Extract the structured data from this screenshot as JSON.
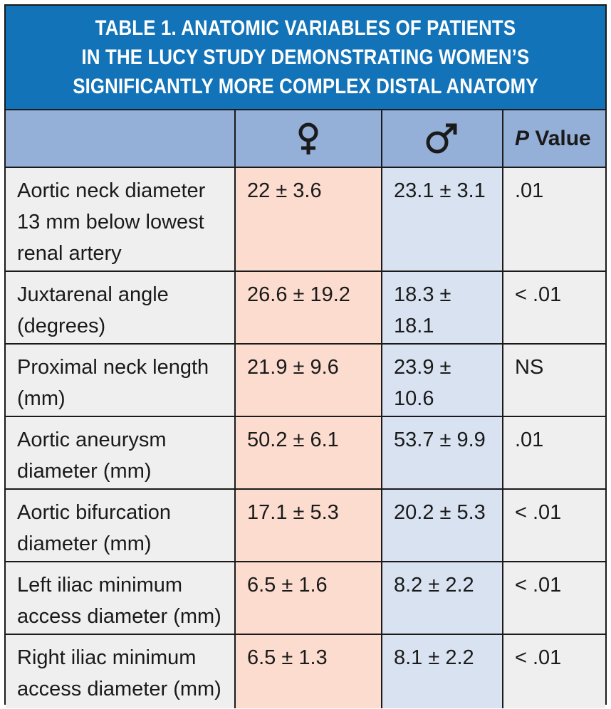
{
  "title": "TABLE 1.  ANATOMIC VARIABLES OF PATIENTS\nIN THE LUCY STUDY DEMONSTRATING WOMEN’S\nSIGNIFICANTLY MORE COMPLEX DISTAL ANATOMY",
  "header": {
    "female_icon": "female-symbol-icon",
    "male_icon": "male-symbol-icon",
    "pvalue_p": "P",
    "pvalue_rest": " Value"
  },
  "colors": {
    "title_bg": "#1273b8",
    "header_bg": "#94b0d8",
    "female_col": "#fbdccf",
    "male_col": "#d8e2f1",
    "neutral_col": "#efefef"
  },
  "rows": [
    {
      "variable": "Aortic neck diameter 13 mm below lowest renal artery",
      "female": "22 ± 3.6",
      "male": "23.1 ± 3.1",
      "p": ".01"
    },
    {
      "variable": "Juxtarenal angle (degrees)",
      "female": "26.6 ± 19.2",
      "male": "18.3 ± 18.1",
      "p": "< .01"
    },
    {
      "variable": "Proximal neck length (mm)",
      "female": "21.9 ± 9.6",
      "male": "23.9 ± 10.6",
      "p": "NS"
    },
    {
      "variable": "Aortic aneurysm diameter (mm)",
      "female": "50.2 ± 6.1",
      "male": "53.7 ± 9.9",
      "p": ".01"
    },
    {
      "variable": "Aortic bifurcation diameter (mm)",
      "female": "17.1 ± 5.3",
      "male": "20.2 ± 5.3",
      "p": "< .01"
    },
    {
      "variable": "Left iliac minimum access diameter (mm)",
      "female": "6.5 ± 1.6",
      "male": "8.2 ± 2.2",
      "p": "< .01"
    },
    {
      "variable": "Right iliac minimum access diameter (mm)",
      "female": "6.5 ± 1.3",
      "male": "8.1 ± 2.2",
      "p": "< .01"
    }
  ]
}
